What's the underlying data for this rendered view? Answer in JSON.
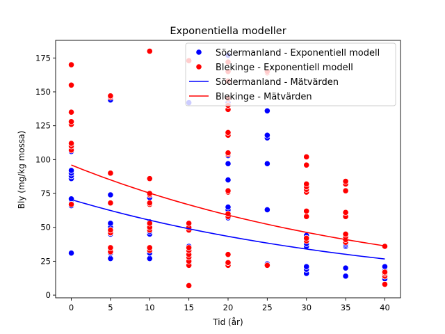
{
  "chart_data": {
    "type": "scatter",
    "title": "Exponentiella modeller",
    "xlabel": "Tid (år)",
    "ylabel": "Bly (mg/kg mossa)",
    "xlim": [
      -2,
      42
    ],
    "ylim": [
      -2,
      188
    ],
    "xticks": [
      0,
      5,
      10,
      15,
      20,
      25,
      30,
      35,
      40
    ],
    "yticks": [
      0,
      25,
      50,
      75,
      100,
      125,
      150,
      175
    ],
    "grid": false,
    "legend_position": "top-right",
    "legend": [
      {
        "label": "Södermanland - Exponentiell modell",
        "kind": "marker",
        "color": "#0000ff"
      },
      {
        "label": "Blekinge - Exponentiell modell",
        "kind": "marker",
        "color": "#ff0000"
      },
      {
        "label": "Södermanland - Mätvärden",
        "kind": "line",
        "color": "#0000ff"
      },
      {
        "label": "Blekinge - Mätvärden",
        "kind": "line",
        "color": "#ff0000"
      }
    ],
    "series": [
      {
        "name": "Södermanland - Exponentiell modell",
        "kind": "scatter",
        "color": "#0000ff",
        "points": [
          [
            0,
            31
          ],
          [
            0,
            66
          ],
          [
            0,
            68
          ],
          [
            0,
            71
          ],
          [
            0,
            86
          ],
          [
            0,
            88
          ],
          [
            0,
            90
          ],
          [
            0,
            92
          ],
          [
            0,
            106
          ],
          [
            0,
            108
          ],
          [
            5,
            27
          ],
          [
            5,
            31
          ],
          [
            5,
            34
          ],
          [
            5,
            35
          ],
          [
            5,
            45
          ],
          [
            5,
            47
          ],
          [
            5,
            50
          ],
          [
            5,
            53
          ],
          [
            5,
            74
          ],
          [
            5,
            144
          ],
          [
            10,
            27
          ],
          [
            10,
            31
          ],
          [
            10,
            34
          ],
          [
            10,
            35
          ],
          [
            10,
            45
          ],
          [
            10,
            47
          ],
          [
            10,
            50
          ],
          [
            10,
            54
          ],
          [
            10,
            72
          ],
          [
            10,
            74
          ],
          [
            15,
            24
          ],
          [
            15,
            26
          ],
          [
            15,
            28
          ],
          [
            15,
            30
          ],
          [
            15,
            32
          ],
          [
            15,
            34
          ],
          [
            15,
            36
          ],
          [
            15,
            48
          ],
          [
            15,
            50
          ],
          [
            15,
            142
          ],
          [
            20,
            57
          ],
          [
            20,
            59
          ],
          [
            20,
            61
          ],
          [
            20,
            63
          ],
          [
            20,
            65
          ],
          [
            20,
            77
          ],
          [
            20,
            85
          ],
          [
            20,
            97
          ],
          [
            20,
            103
          ],
          [
            20,
            142
          ],
          [
            20,
            177
          ],
          [
            25,
            23
          ],
          [
            25,
            63
          ],
          [
            25,
            97
          ],
          [
            25,
            116
          ],
          [
            25,
            118
          ],
          [
            25,
            136
          ],
          [
            30,
            16
          ],
          [
            30,
            19
          ],
          [
            30,
            21
          ],
          [
            30,
            36
          ],
          [
            30,
            38
          ],
          [
            30,
            40
          ],
          [
            30,
            42
          ],
          [
            30,
            44
          ],
          [
            35,
            14
          ],
          [
            35,
            20
          ],
          [
            35,
            36
          ],
          [
            35,
            37
          ],
          [
            35,
            38
          ],
          [
            35,
            40
          ],
          [
            35,
            42
          ],
          [
            40,
            12
          ],
          [
            40,
            14
          ],
          [
            40,
            16
          ],
          [
            40,
            18
          ],
          [
            40,
            21
          ]
        ]
      },
      {
        "name": "Blekinge - Exponentiell modell",
        "kind": "scatter",
        "color": "#ff0000",
        "points": [
          [
            0,
            67
          ],
          [
            0,
            107
          ],
          [
            0,
            110
          ],
          [
            0,
            112
          ],
          [
            0,
            126
          ],
          [
            0,
            128
          ],
          [
            0,
            135
          ],
          [
            0,
            155
          ],
          [
            0,
            170
          ],
          [
            5,
            32
          ],
          [
            5,
            35
          ],
          [
            5,
            46
          ],
          [
            5,
            48
          ],
          [
            5,
            68
          ],
          [
            5,
            90
          ],
          [
            5,
            146
          ],
          [
            5,
            147
          ],
          [
            10,
            33
          ],
          [
            10,
            35
          ],
          [
            10,
            48
          ],
          [
            10,
            50
          ],
          [
            10,
            53
          ],
          [
            10,
            67
          ],
          [
            10,
            68
          ],
          [
            10,
            74
          ],
          [
            10,
            75
          ],
          [
            10,
            86
          ],
          [
            10,
            180
          ],
          [
            15,
            7
          ],
          [
            15,
            22
          ],
          [
            15,
            25
          ],
          [
            15,
            28
          ],
          [
            15,
            30
          ],
          [
            15,
            33
          ],
          [
            15,
            35
          ],
          [
            15,
            48
          ],
          [
            15,
            50
          ],
          [
            15,
            53
          ],
          [
            15,
            173
          ],
          [
            20,
            22
          ],
          [
            20,
            24
          ],
          [
            20,
            30
          ],
          [
            20,
            58
          ],
          [
            20,
            60
          ],
          [
            20,
            76
          ],
          [
            20,
            77
          ],
          [
            20,
            104
          ],
          [
            20,
            105
          ],
          [
            20,
            118
          ],
          [
            20,
            120
          ],
          [
            20,
            137
          ],
          [
            20,
            140
          ],
          [
            20,
            145
          ],
          [
            20,
            158
          ],
          [
            20,
            165
          ],
          [
            20,
            172
          ],
          [
            25,
            22
          ],
          [
            25,
            164
          ],
          [
            25,
            165
          ],
          [
            30,
            40
          ],
          [
            30,
            42
          ],
          [
            30,
            58
          ],
          [
            30,
            62
          ],
          [
            30,
            76
          ],
          [
            30,
            78
          ],
          [
            30,
            80
          ],
          [
            30,
            82
          ],
          [
            30,
            96
          ],
          [
            30,
            102
          ],
          [
            35,
            39
          ],
          [
            35,
            41
          ],
          [
            35,
            43
          ],
          [
            35,
            45
          ],
          [
            35,
            58
          ],
          [
            35,
            61
          ],
          [
            35,
            77
          ],
          [
            35,
            82
          ],
          [
            35,
            84
          ],
          [
            40,
            8
          ],
          [
            40,
            14
          ],
          [
            40,
            16
          ],
          [
            40,
            17
          ],
          [
            40,
            36
          ]
        ]
      },
      {
        "name": "Södermanland - Mätvärden",
        "kind": "line",
        "color": "#0000ff",
        "model": {
          "a": 70.5,
          "k": 0.0243
        },
        "x_range": [
          0,
          40
        ]
      },
      {
        "name": "Blekinge - Mätvärden",
        "kind": "line",
        "color": "#ff0000",
        "model": {
          "a": 96.0,
          "k": 0.0243
        },
        "x_range": [
          0,
          40
        ]
      }
    ]
  }
}
